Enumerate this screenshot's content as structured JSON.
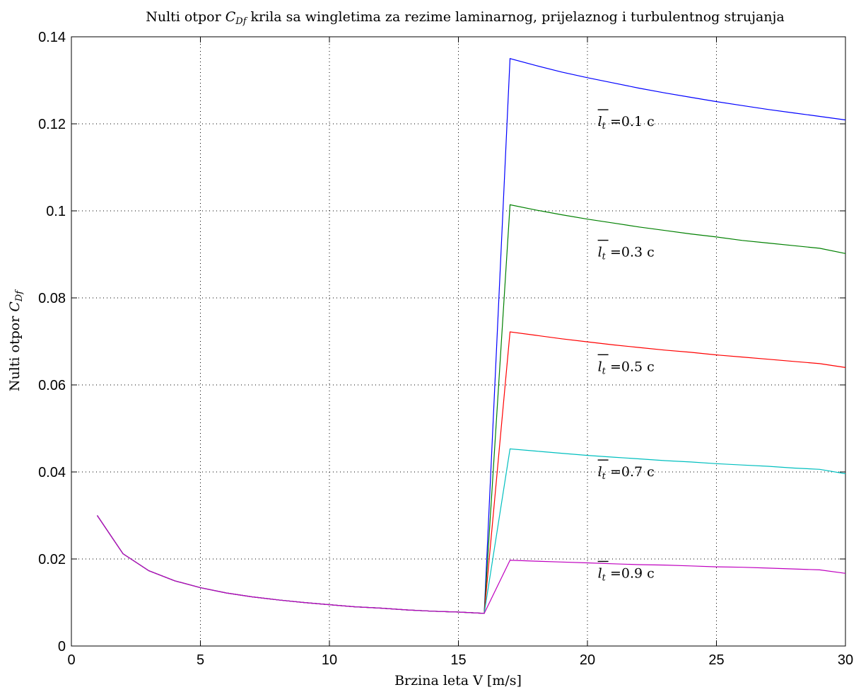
{
  "chart_data": {
    "type": "line",
    "title_prefix": "Nulti otpor ",
    "title_symbol": "C",
    "title_symbol_sub": "Df",
    "title_suffix": " krila sa wingletima za rezime laminarnog, prijelaznog i turbulentnog strujanja",
    "xlabel": "Brzina leta V [m/s]",
    "ylabel_prefix": "Nulti otpor ",
    "ylabel_symbol": "C",
    "ylabel_symbol_sub": "Df",
    "xlim": [
      0,
      30
    ],
    "ylim": [
      0,
      0.14
    ],
    "xticks": [
      0,
      5,
      10,
      15,
      20,
      25,
      30
    ],
    "xtick_labels": [
      "0",
      "5",
      "10",
      "15",
      "20",
      "25",
      "30"
    ],
    "yticks": [
      0,
      0.02,
      0.04,
      0.06,
      0.08,
      0.1,
      0.12,
      0.14
    ],
    "ytick_labels": [
      "0",
      "0.02",
      "0.04",
      "0.06",
      "0.08",
      "0.1",
      "0.12",
      "0.14"
    ],
    "grid": true,
    "legend": "none",
    "x": [
      1,
      2,
      3,
      4,
      5,
      6,
      7,
      8,
      9,
      10,
      11,
      12,
      13,
      14,
      15,
      16,
      17,
      18,
      19,
      20,
      21,
      22,
      23,
      24,
      25,
      26,
      27,
      28,
      29,
      30
    ],
    "laminar_values": [
      0.03,
      0.0212,
      0.0173,
      0.015,
      0.0134,
      0.0122,
      0.0113,
      0.0106,
      0.01,
      0.0095,
      0.009,
      0.0087,
      0.0083,
      0.008,
      0.0078,
      0.0075
    ],
    "series": [
      {
        "color": "#0000ff",
        "turbulent_values": [
          0.135,
          0.1334,
          0.1319,
          0.1306,
          0.1294,
          0.1282,
          0.1271,
          0.1261,
          0.1251,
          0.1242,
          0.1233,
          0.1225,
          0.1217,
          0.1209
        ]
      },
      {
        "color": "#008000",
        "turbulent_values": [
          0.1014,
          0.1002,
          0.0991,
          0.0981,
          0.0972,
          0.0963,
          0.0955,
          0.0947,
          0.094,
          0.0932,
          0.0926,
          0.092,
          0.0914,
          0.0902
        ]
      },
      {
        "color": "#ff0000",
        "turbulent_values": [
          0.0722,
          0.0714,
          0.0706,
          0.0699,
          0.0692,
          0.0686,
          0.068,
          0.0675,
          0.0669,
          0.0664,
          0.0659,
          0.0654,
          0.0649,
          0.064
        ]
      },
      {
        "color": "#00bfbf",
        "turbulent_values": [
          0.0453,
          0.0448,
          0.0443,
          0.0438,
          0.0434,
          0.043,
          0.0426,
          0.0423,
          0.0419,
          0.0416,
          0.0413,
          0.0409,
          0.0406,
          0.0396
        ]
      },
      {
        "color": "#bf00bf",
        "turbulent_values": [
          0.0197,
          0.0195,
          0.0193,
          0.0191,
          0.0189,
          0.0187,
          0.0186,
          0.0184,
          0.0182,
          0.0181,
          0.0179,
          0.0177,
          0.0175,
          0.0167
        ]
      }
    ],
    "annotations": [
      {
        "symbol": "l",
        "sub": "t",
        "text": " =0.1 c",
        "x": 20.4,
        "y": 0.1195
      },
      {
        "symbol": "l",
        "sub": "t",
        "text": " =0.3 c",
        "x": 20.4,
        "y": 0.0895
      },
      {
        "symbol": "l",
        "sub": "t",
        "text": " =0.5 c",
        "x": 20.4,
        "y": 0.0632
      },
      {
        "symbol": "l",
        "sub": "t",
        "text": " =0.7 c",
        "x": 20.4,
        "y": 0.039
      },
      {
        "symbol": "l",
        "sub": "t",
        "text": " =0.9 c",
        "x": 20.4,
        "y": 0.0157
      }
    ]
  }
}
